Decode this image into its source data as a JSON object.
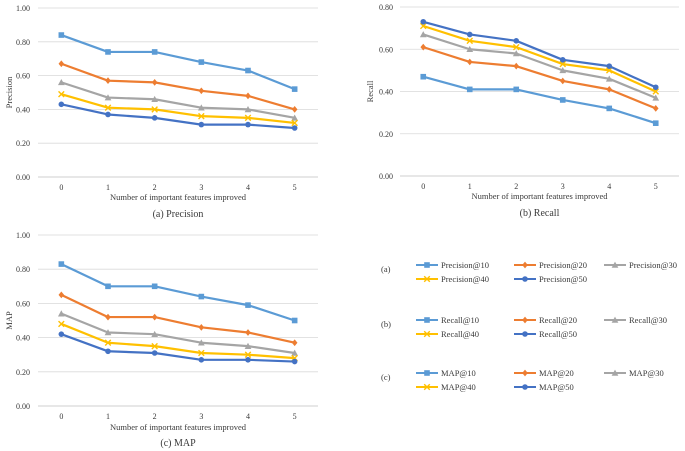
{
  "chart_data": [
    {
      "type": "line",
      "title": "",
      "caption": "(a)  Precision",
      "xlabel": "Number of important features improved",
      "ylabel": "Precision",
      "x": [
        0,
        1,
        2,
        3,
        4,
        5
      ],
      "ylim": [
        0,
        1.0
      ],
      "yticks": [
        "0.00",
        "0.20",
        "0.40",
        "0.60",
        "0.80",
        "1.00"
      ],
      "grid": true,
      "series": [
        {
          "name": "Precision@10",
          "values": [
            0.84,
            0.74,
            0.74,
            0.68,
            0.63,
            0.52
          ]
        },
        {
          "name": "Precision@20",
          "values": [
            0.67,
            0.57,
            0.56,
            0.51,
            0.48,
            0.4
          ]
        },
        {
          "name": "Precision@30",
          "values": [
            0.56,
            0.47,
            0.46,
            0.41,
            0.4,
            0.35
          ]
        },
        {
          "name": "Precision@40",
          "values": [
            0.49,
            0.41,
            0.4,
            0.36,
            0.35,
            0.32
          ]
        },
        {
          "name": "Precision@50",
          "values": [
            0.43,
            0.37,
            0.35,
            0.31,
            0.31,
            0.29
          ]
        }
      ]
    },
    {
      "type": "line",
      "title": "",
      "caption": "(b) Recall",
      "xlabel": "Number of important features improved",
      "ylabel": "Recall",
      "x": [
        0,
        1,
        2,
        3,
        4,
        5
      ],
      "ylim": [
        0,
        0.8
      ],
      "yticks": [
        "0.00",
        "0.20",
        "0.40",
        "0.60",
        "0.80"
      ],
      "grid": true,
      "series": [
        {
          "name": "Recall@10",
          "values": [
            0.47,
            0.41,
            0.41,
            0.36,
            0.32,
            0.25
          ]
        },
        {
          "name": "Recall@20",
          "values": [
            0.61,
            0.54,
            0.52,
            0.45,
            0.41,
            0.32
          ]
        },
        {
          "name": "Recall@30",
          "values": [
            0.67,
            0.6,
            0.58,
            0.5,
            0.46,
            0.37
          ]
        },
        {
          "name": "Recall@40",
          "values": [
            0.71,
            0.64,
            0.61,
            0.53,
            0.5,
            0.4
          ]
        },
        {
          "name": "Recall@50",
          "values": [
            0.73,
            0.67,
            0.64,
            0.55,
            0.52,
            0.42
          ]
        }
      ]
    },
    {
      "type": "line",
      "title": "",
      "caption": "(c)  MAP",
      "xlabel": "Number of important features improved",
      "ylabel": "MAP",
      "x": [
        0,
        1,
        2,
        3,
        4,
        5
      ],
      "ylim": [
        0,
        1.0
      ],
      "yticks": [
        "0.00",
        "0.20",
        "0.40",
        "0.60",
        "0.80",
        "1.00"
      ],
      "grid": true,
      "series": [
        {
          "name": "MAP@10",
          "values": [
            0.83,
            0.7,
            0.7,
            0.64,
            0.59,
            0.5
          ]
        },
        {
          "name": "MAP@20",
          "values": [
            0.65,
            0.52,
            0.52,
            0.46,
            0.43,
            0.37
          ]
        },
        {
          "name": "MAP@30",
          "values": [
            0.54,
            0.43,
            0.42,
            0.37,
            0.35,
            0.31
          ]
        },
        {
          "name": "MAP@40",
          "values": [
            0.48,
            0.37,
            0.35,
            0.31,
            0.3,
            0.28
          ]
        },
        {
          "name": "MAP@50",
          "values": [
            0.42,
            0.32,
            0.31,
            0.27,
            0.27,
            0.26
          ]
        }
      ]
    }
  ],
  "series_styles": [
    {
      "color": "#5b9bd5",
      "marker": "square"
    },
    {
      "color": "#ed7d31",
      "marker": "diamond"
    },
    {
      "color": "#a5a5a5",
      "marker": "triangle"
    },
    {
      "color": "#ffc000",
      "marker": "x"
    },
    {
      "color": "#4472c4",
      "marker": "circle"
    }
  ],
  "legend": [
    {
      "label": "(a)",
      "entries": [
        "Precision@10",
        "Precision@20",
        "Precision@30",
        "Precision@40",
        "Precision@50"
      ]
    },
    {
      "label": "(b)",
      "entries": [
        "Recall@10",
        "Recall@20",
        "Recall@30",
        "Recall@40",
        "Recall@50"
      ]
    },
    {
      "label": "(c)",
      "entries": [
        "MAP@10",
        "MAP@20",
        "MAP@30",
        "MAP@40",
        "MAP@50"
      ]
    }
  ]
}
